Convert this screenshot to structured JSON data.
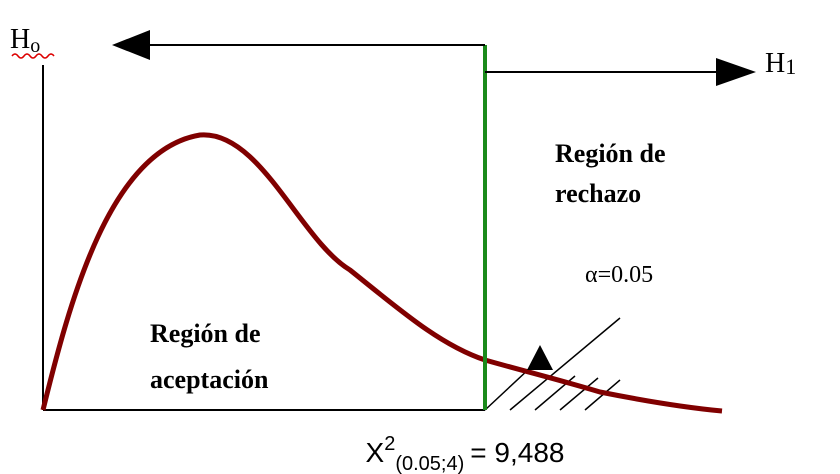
{
  "h0": {
    "main": "H",
    "sub": "o"
  },
  "h1": {
    "main": "H",
    "sub": "1"
  },
  "rejection_region": {
    "lines": [
      "Región de",
      "rechazo"
    ]
  },
  "alpha": "α=0.05",
  "acceptance_region": {
    "lines": [
      "Región de",
      "aceptación"
    ]
  },
  "critical_value": {
    "symbol": "X",
    "superscript": "2",
    "subscript": "(0.05;4)",
    "value": "= 9,488"
  }
}
